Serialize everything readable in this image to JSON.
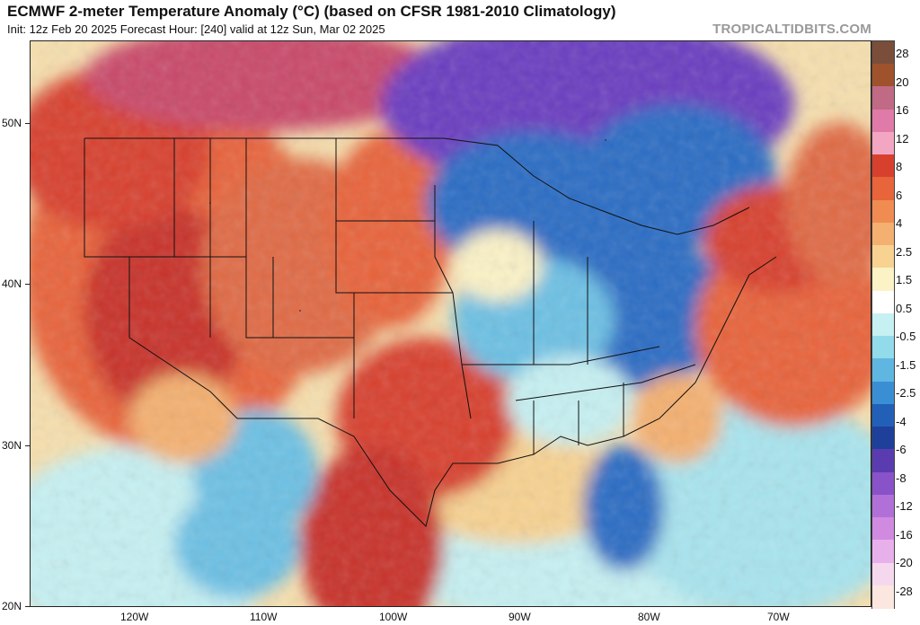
{
  "header": {
    "title": "ECMWF 2-meter Temperature Anomaly (°C) (based on CFSR 1981-2010 Climatology)",
    "subtitle": "Init: 12z Feb 20 2025   Forecast Hour: [240]   valid at 12z Sun, Mar 02 2025",
    "source": "TROPICALTIDBITS.COM"
  },
  "axes": {
    "lat_labels": [
      "50N",
      "40N",
      "30N",
      "20N"
    ],
    "lon_labels": [
      "120W",
      "110W",
      "100W",
      "90W",
      "80W",
      "70W"
    ]
  },
  "colorbar": {
    "labels": [
      "28",
      "20",
      "16",
      "12",
      "8",
      "6",
      "4",
      "2.5",
      "1.5",
      "0.5",
      "-0.5",
      "-1.5",
      "-2.5",
      "-4",
      "-6",
      "-8",
      "-12",
      "-16",
      "-20",
      "-28"
    ],
    "colors": [
      "#7a4e3a",
      "#a0522d",
      "#c06a86",
      "#e07aa8",
      "#f2a6c2",
      "#d8402e",
      "#e8643a",
      "#f08c52",
      "#f4b070",
      "#f7d291",
      "#fbf2c6",
      "#ffffff",
      "#c6f0f2",
      "#92dbea",
      "#5fb6e0",
      "#3a8fd4",
      "#2260b8",
      "#1e3f9a",
      "#5a3cb0",
      "#8a52c8",
      "#b070d8",
      "#d08ae0",
      "#e8b0ea",
      "#f6d8ee",
      "#fbe6e0"
    ]
  },
  "map": {
    "colors": {
      "warm_strong": "#c8322a",
      "warm": "#e8643a",
      "warm_light": "#f4b070",
      "warm_pale": "#f9e0a8",
      "neutral": "#fbf6e4",
      "cool_pale": "#c6f0f2",
      "cool": "#6cc0e4",
      "cool_strong": "#2a6cc4",
      "cold": "#1e3f9a",
      "cold_purple": "#6a3cc0",
      "land_border": "#111111"
    }
  }
}
